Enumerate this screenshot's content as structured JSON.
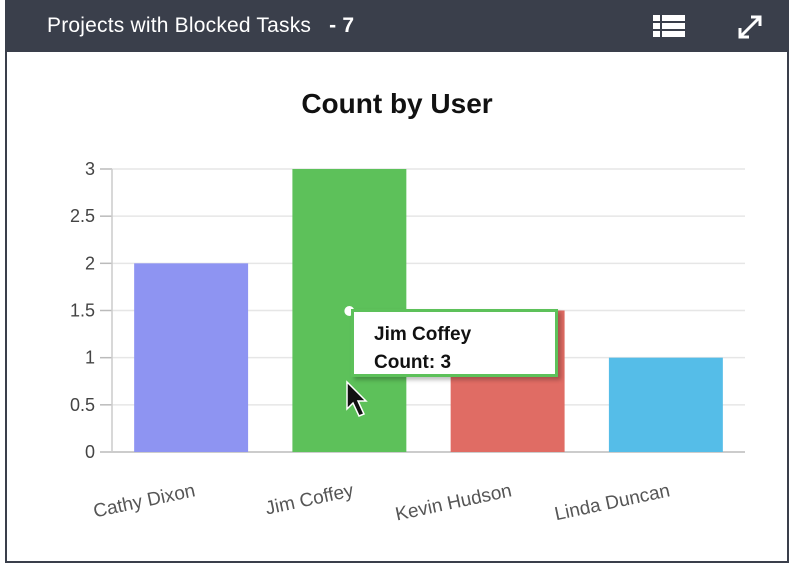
{
  "widget": {
    "title": "Projects with Blocked Tasks",
    "count": "- 7",
    "table_view_icon": "table-list-icon",
    "expand_icon": "expand-icon"
  },
  "chart_data": {
    "type": "bar",
    "title": "Count by User",
    "categories": [
      "Cathy Dixon",
      "Jim Coffey",
      "Kevin Hudson",
      "Linda Duncan"
    ],
    "values": [
      2,
      3,
      1.5,
      1
    ],
    "colors": [
      "#8e94f2",
      "#5dc15a",
      "#e06c64",
      "#55bde8"
    ],
    "ylim": [
      0,
      3
    ],
    "yticks": [
      "0",
      "0.5",
      "1",
      "1.5",
      "2",
      "2.5",
      "3"
    ],
    "grid": true,
    "xlabel": "",
    "ylabel": ""
  },
  "tooltip": {
    "name": "Jim Coffey",
    "value_text": "Count: 3"
  }
}
